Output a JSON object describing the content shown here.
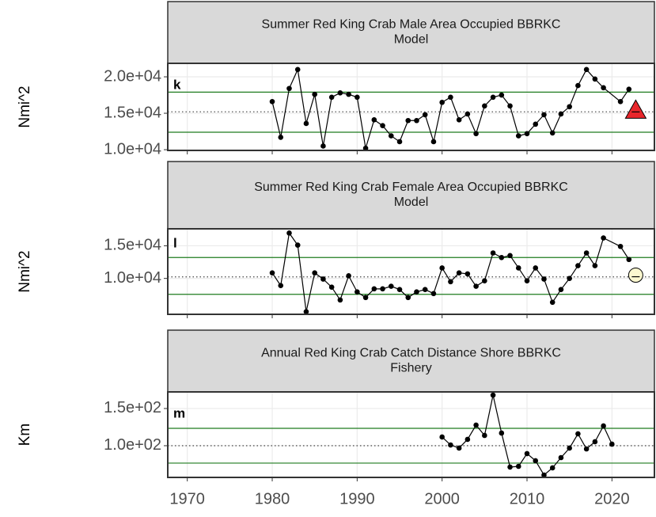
{
  "chart_data": [
    {
      "type": "line",
      "title": [
        "Summer Red King Crab Male Area Occupied BBRKC",
        "Model"
      ],
      "panel_label": "k",
      "y_label": "Nmi^2",
      "x": [
        1980,
        1981,
        1982,
        1983,
        1984,
        1985,
        1986,
        1987,
        1988,
        1989,
        1990,
        1991,
        1992,
        1993,
        1994,
        1995,
        1996,
        1997,
        1998,
        1999,
        2000,
        2001,
        2002,
        2003,
        2004,
        2005,
        2006,
        2007,
        2008,
        2009,
        2010,
        2011,
        2012,
        2013,
        2014,
        2015,
        2016,
        2017,
        2018,
        2019,
        2021,
        2022
      ],
      "values": [
        16600,
        11700,
        18400,
        21000,
        13600,
        17600,
        10500,
        17200,
        17800,
        17600,
        17200,
        10200,
        14100,
        13300,
        11900,
        11100,
        14000,
        14000,
        14800,
        11100,
        16500,
        17200,
        14100,
        14900,
        12200,
        16000,
        17200,
        17500,
        16000,
        11900,
        12200,
        13500,
        14800,
        12300,
        14900,
        15900,
        18800,
        21000,
        19700,
        18500,
        16600,
        18300
      ],
      "color": "#000000",
      "xlim": [
        1967.7,
        2025.0
      ],
      "xticks": [
        1970,
        1980,
        1990,
        2000,
        2010,
        2020
      ],
      "x_tick_labels": false,
      "ylim": [
        9900,
        21850
      ],
      "yticks": [
        {
          "value": 10000,
          "label": "1.0e+04"
        },
        {
          "value": 15000,
          "label": "1.5e+04"
        },
        {
          "value": 20000,
          "label": "2.0e+04"
        }
      ],
      "hlines": [
        {
          "value": 17900,
          "style": "solid"
        },
        {
          "value": 15200,
          "style": "dotted"
        },
        {
          "value": 12400,
          "style": "solid"
        }
      ],
      "hline_color": "#1e7b1e",
      "marker": {
        "x": 2022.8,
        "value": 15400,
        "shape": "triangle",
        "color": "#e8262b"
      },
      "grid": true
    },
    {
      "type": "line",
      "title": [
        "Summer Red King Crab Female Area Occupied BBRKC",
        "Model"
      ],
      "panel_label": "l",
      "y_label": "Nmi^2",
      "x": [
        1980,
        1981,
        1982,
        1983,
        1984,
        1985,
        1986,
        1987,
        1988,
        1989,
        1990,
        1991,
        1992,
        1993,
        1994,
        1995,
        1996,
        1997,
        1998,
        1999,
        2000,
        2001,
        2002,
        2003,
        2004,
        2005,
        2006,
        2007,
        2008,
        2009,
        2010,
        2011,
        2012,
        2013,
        2014,
        2015,
        2016,
        2017,
        2018,
        2019,
        2021,
        2022
      ],
      "values": [
        10850,
        8900,
        16950,
        15100,
        4900,
        10850,
        9900,
        8660,
        6700,
        10400,
        7930,
        7070,
        8400,
        8400,
        8800,
        8300,
        7070,
        7930,
        8300,
        7680,
        11600,
        9500,
        10850,
        10700,
        8800,
        9630,
        13900,
        13200,
        13500,
        11600,
        9630,
        11600,
        9900,
        6340,
        8300,
        10000,
        11950,
        13900,
        11950,
        16200,
        14900,
        12900
      ],
      "color": "#000000",
      "xlim": [
        1967.7,
        2025.0
      ],
      "xticks": [
        1970,
        1980,
        1990,
        2000,
        2010,
        2020
      ],
      "x_tick_labels": false,
      "ylim": [
        4500,
        17600
      ],
      "yticks": [
        {
          "value": 10000,
          "label": "1.0e+04"
        },
        {
          "value": 15000,
          "label": "1.5e+04"
        }
      ],
      "hlines": [
        {
          "value": 13200,
          "style": "solid"
        },
        {
          "value": 10240,
          "style": "dotted"
        },
        {
          "value": 7560,
          "style": "solid"
        }
      ],
      "hline_color": "#1e7b1e",
      "marker": {
        "x": 2022.8,
        "value": 10500,
        "shape": "circle",
        "color": "#fbf8d0"
      },
      "grid": true
    },
    {
      "type": "line",
      "title": [
        "Annual Red King Crab Catch Distance Shore BBRKC",
        "Fishery"
      ],
      "panel_label": "m",
      "y_label": "Km",
      "x": [
        2000,
        2001,
        2002,
        2003,
        2004,
        2005,
        2006,
        2007,
        2008,
        2009,
        2010,
        2011,
        2012,
        2013,
        2014,
        2015,
        2016,
        2017,
        2018,
        2019,
        2020
      ],
      "values": [
        111.7,
        101,
        96.8,
        108.5,
        127.7,
        113.8,
        168,
        117,
        71.3,
        72.3,
        89.4,
        79.8,
        60.6,
        70.2,
        84,
        96.8,
        116,
        95.7,
        105.3,
        126.6,
        102.1
      ],
      "color": "#000000",
      "xlim": [
        1967.7,
        2025.0
      ],
      "xticks": [
        1970,
        1980,
        1990,
        2000,
        2010,
        2020
      ],
      "x_tick_labels": true,
      "ylim": [
        57.4,
        172.3
      ],
      "yticks": [
        {
          "value": 100,
          "label": "1.0e+02"
        },
        {
          "value": 150,
          "label": "1.5e+02"
        }
      ],
      "hlines": [
        {
          "value": 123.4,
          "style": "solid"
        },
        {
          "value": 100,
          "style": "dotted"
        },
        {
          "value": 76.6,
          "style": "solid"
        }
      ],
      "hline_color": "#1e7b1e",
      "grid": true
    }
  ]
}
